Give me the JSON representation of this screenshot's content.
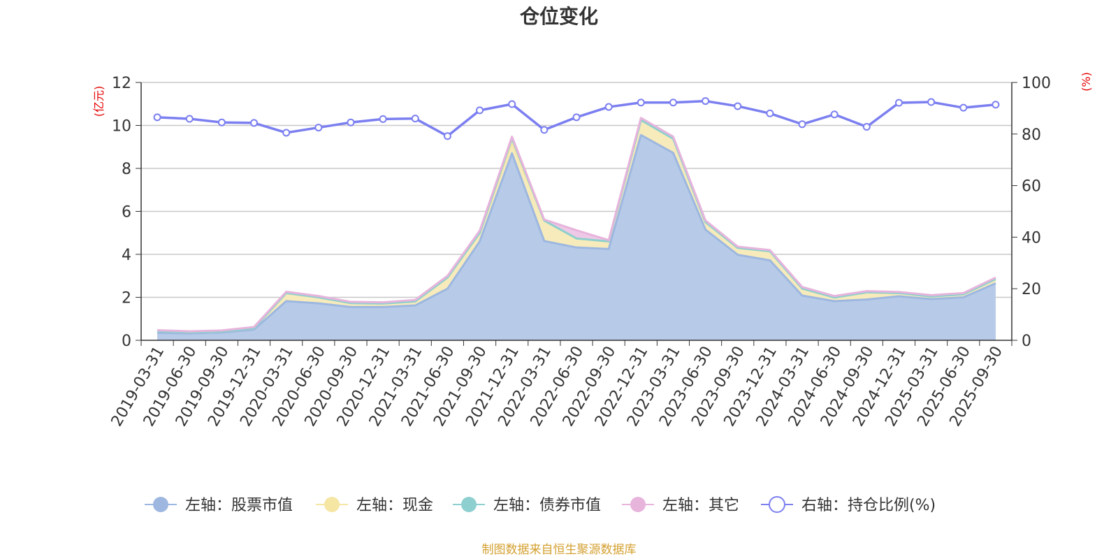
{
  "chart_data": {
    "type": "area",
    "title": "仓位变化",
    "footer": "制图数据来自恒生聚源数据库",
    "left_axis": {
      "unit_label": "(亿元)",
      "ylim": [
        0,
        12
      ],
      "ticks": [
        "0",
        "2",
        "4",
        "6",
        "8",
        "10",
        "12"
      ]
    },
    "right_axis": {
      "unit_label": "(%)",
      "ylim": [
        0,
        100
      ],
      "ticks": [
        "0",
        "20",
        "40",
        "60",
        "80",
        "100"
      ]
    },
    "categories": [
      "2019-03-31",
      "2019-06-30",
      "2019-09-30",
      "2019-12-31",
      "2020-03-31",
      "2020-06-30",
      "2020-09-30",
      "2020-12-31",
      "2021-03-31",
      "2021-06-30",
      "2021-09-30",
      "2021-12-31",
      "2022-03-31",
      "2022-06-30",
      "2022-09-30",
      "2022-12-31",
      "2023-03-31",
      "2023-06-30",
      "2023-09-30",
      "2023-12-31",
      "2024-03-31",
      "2024-06-30",
      "2024-09-30",
      "2024-12-31",
      "2025-03-31",
      "2025-06-30",
      "2025-09-30"
    ],
    "grid": true,
    "legend_position": "bottom",
    "series": [
      {
        "name": "左轴：股票市值",
        "axis": "left",
        "stacked": true,
        "color": "#9db7e0",
        "fill": "#b7cbe9",
        "values": [
          0.35,
          0.32,
          0.36,
          0.5,
          1.82,
          1.72,
          1.55,
          1.55,
          1.62,
          2.4,
          4.6,
          8.7,
          4.62,
          4.32,
          4.25,
          9.55,
          8.72,
          5.15,
          3.98,
          3.72,
          2.08,
          1.82,
          1.9,
          2.05,
          1.92,
          2.0,
          2.65
        ]
      },
      {
        "name": "左轴：现金",
        "axis": "left",
        "stacked": true,
        "color": "#f6e6a4",
        "fill": "#f7ebbb",
        "values": [
          0.08,
          0.06,
          0.05,
          0.07,
          0.38,
          0.28,
          0.18,
          0.16,
          0.19,
          0.52,
          0.4,
          0.5,
          0.95,
          0.42,
          0.35,
          0.7,
          0.66,
          0.35,
          0.32,
          0.42,
          0.33,
          0.17,
          0.33,
          0.15,
          0.12,
          0.14,
          0.2
        ]
      },
      {
        "name": "左轴：债券市值",
        "axis": "left",
        "stacked": true,
        "color": "#8ecfcf",
        "fill": "#a8dcdc",
        "values": [
          0,
          0,
          0,
          0,
          0,
          0,
          0,
          0,
          0,
          0,
          0,
          0.2,
          0,
          0,
          0,
          0,
          0,
          0,
          0,
          0,
          0,
          0,
          0,
          0,
          0,
          0,
          0
        ]
      },
      {
        "name": "左轴：其它",
        "axis": "left",
        "stacked": true,
        "color": "#e7b4dc",
        "fill": "#eec8e6",
        "values": [
          0.04,
          0.04,
          0.05,
          0.05,
          0.06,
          0.06,
          0.06,
          0.06,
          0.07,
          0.08,
          0.1,
          0.08,
          0.05,
          0.38,
          0.06,
          0.1,
          0.1,
          0.08,
          0.06,
          0.06,
          0.07,
          0.07,
          0.06,
          0.05,
          0.06,
          0.06,
          0.07
        ]
      },
      {
        "name": "右轴：持仓比例(%)",
        "axis": "right",
        "type": "line",
        "color": "#7b7ff0",
        "values": [
          86.5,
          85.9,
          84.5,
          84.3,
          80.5,
          82.5,
          84.5,
          85.8,
          86.0,
          79.2,
          89.2,
          91.6,
          81.6,
          86.5,
          90.5,
          92.2,
          92.2,
          92.8,
          90.8,
          88.0,
          83.8,
          87.6,
          82.8,
          92.1,
          92.4,
          90.2,
          91.4
        ]
      }
    ]
  }
}
